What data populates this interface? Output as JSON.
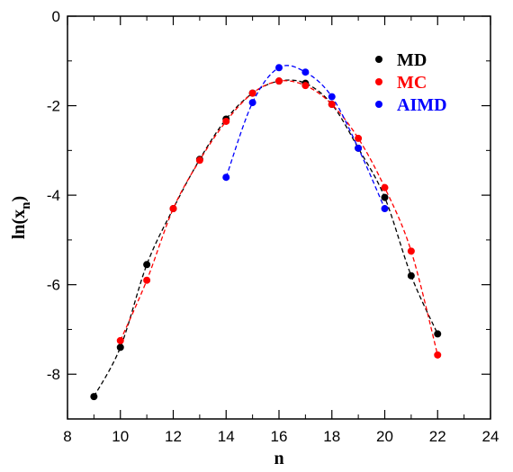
{
  "chart_data": {
    "type": "scatter",
    "xlabel": "n",
    "ylabel": "ln(x",
    "ylabel_sub": "n",
    "ylabel_close": ")",
    "xlim": [
      8,
      24
    ],
    "ylim": [
      -9,
      0
    ],
    "xticks": [
      8,
      10,
      12,
      14,
      16,
      18,
      20,
      22,
      24
    ],
    "yticks": [
      0,
      -2,
      -4,
      -6,
      -8
    ],
    "grid": false,
    "legend_position": "top-right",
    "series": [
      {
        "name": "MD",
        "color": "#000000",
        "x": [
          9,
          10,
          11,
          12,
          13,
          14,
          15,
          16,
          17,
          18,
          19,
          20,
          21,
          22
        ],
        "y": [
          -8.5,
          -7.4,
          -5.55,
          -4.3,
          -3.2,
          -2.3,
          -1.72,
          -1.45,
          -1.5,
          -1.97,
          -2.95,
          -4.05,
          -5.8,
          -7.1
        ]
      },
      {
        "name": "MC",
        "color": "#ff0000",
        "x": [
          10,
          11,
          12,
          13,
          14,
          15,
          16,
          17,
          18,
          19,
          20,
          21,
          22
        ],
        "y": [
          -7.25,
          -5.9,
          -4.3,
          -3.22,
          -2.35,
          -1.72,
          -1.45,
          -1.55,
          -1.97,
          -2.73,
          -3.83,
          -5.25,
          -7.57
        ]
      },
      {
        "name": "AIMD",
        "color": "#0000ff",
        "x": [
          14,
          15,
          16,
          17,
          18,
          19,
          20
        ],
        "y": [
          -3.6,
          -1.93,
          -1.15,
          -1.25,
          -1.8,
          -2.95,
          -4.3
        ]
      }
    ]
  }
}
